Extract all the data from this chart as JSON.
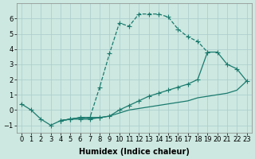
{
  "xlabel": "Humidex (Indice chaleur)",
  "background_color": "#cce8e0",
  "grid_color": "#aacccc",
  "line_color": "#1a7a6e",
  "series": [
    {
      "x": [
        0,
        1,
        2,
        3,
        4,
        5,
        6,
        7,
        8
      ],
      "y": [
        0.4,
        0.0,
        -0.6,
        -1.0,
        -0.7,
        -0.6,
        -0.6,
        -0.6,
        -0.5
      ],
      "linestyle": "-",
      "marker": "+",
      "markersize": 4,
      "linewidth": 0.9
    },
    {
      "x": [
        4,
        5,
        6,
        7,
        8,
        9,
        10,
        11,
        12,
        13,
        14,
        15,
        16,
        17,
        18,
        19
      ],
      "y": [
        -0.7,
        -0.6,
        -0.5,
        -0.5,
        1.5,
        3.7,
        5.7,
        5.5,
        6.3,
        6.3,
        6.3,
        6.1,
        5.3,
        4.8,
        4.5,
        3.8
      ],
      "linestyle": "--",
      "marker": "+",
      "markersize": 4,
      "linewidth": 0.9
    },
    {
      "x": [
        4,
        5,
        6,
        7,
        8,
        9,
        10,
        11,
        12,
        13,
        14,
        15,
        16,
        17,
        18,
        19,
        20,
        21,
        22,
        23
      ],
      "y": [
        -0.7,
        -0.6,
        -0.5,
        -0.5,
        -0.5,
        -0.4,
        0.0,
        0.3,
        0.6,
        0.9,
        1.1,
        1.3,
        1.5,
        1.7,
        2.0,
        3.8,
        3.8,
        3.0,
        2.7,
        1.9
      ],
      "linestyle": "-",
      "marker": "+",
      "markersize": 4,
      "linewidth": 0.9
    },
    {
      "x": [
        4,
        5,
        6,
        7,
        8,
        9,
        10,
        11,
        12,
        13,
        14,
        15,
        16,
        17,
        18,
        19,
        20,
        21,
        22,
        23
      ],
      "y": [
        -0.7,
        -0.6,
        -0.5,
        -0.5,
        -0.5,
        -0.4,
        -0.2,
        0.0,
        0.1,
        0.2,
        0.3,
        0.4,
        0.5,
        0.6,
        0.8,
        0.9,
        1.0,
        1.1,
        1.3,
        1.9
      ],
      "linestyle": "-",
      "marker": null,
      "markersize": 0,
      "linewidth": 0.9
    }
  ],
  "xlim": [
    -0.5,
    23.5
  ],
  "ylim": [
    -1.5,
    7.0
  ],
  "yticks": [
    -1,
    0,
    1,
    2,
    3,
    4,
    5,
    6
  ],
  "xticks": [
    0,
    1,
    2,
    3,
    4,
    5,
    6,
    7,
    8,
    9,
    10,
    11,
    12,
    13,
    14,
    15,
    16,
    17,
    18,
    19,
    20,
    21,
    22,
    23
  ],
  "xtick_labels": [
    "0",
    "1",
    "2",
    "3",
    "4",
    "5",
    "6",
    "7",
    "8",
    "9",
    "10",
    "11",
    "12",
    "13",
    "14",
    "15",
    "16",
    "17",
    "18",
    "19",
    "20",
    "21",
    "22",
    "23"
  ],
  "fontsize_xlabel": 7,
  "fontsize_tick": 6
}
